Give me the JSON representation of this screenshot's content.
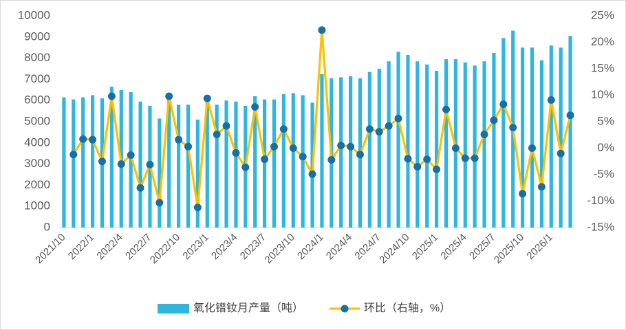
{
  "chart_data": {
    "type": "bar_line",
    "categories": [
      "2021/10",
      null,
      null,
      "2022/1",
      null,
      null,
      "2022/4",
      null,
      null,
      "2022/7",
      null,
      null,
      "2022/10",
      null,
      null,
      "2023/1",
      null,
      null,
      "2023/4",
      null,
      null,
      "2023/7",
      null,
      null,
      "2023/10",
      null,
      null,
      "2024/1",
      null,
      null,
      "2024/4",
      null,
      null,
      "2024/7",
      null,
      null,
      "2024/10",
      null,
      null,
      "2025/1",
      null,
      null,
      "2025/4",
      null,
      null,
      "2025/7",
      null,
      null,
      "2025/10",
      null,
      null,
      "2026/1",
      null,
      null
    ],
    "series": [
      {
        "name": "氧化镨钕月产量（吨）",
        "type": "bar",
        "color": "#2cb6e0",
        "values": [
          6150,
          6050,
          6150,
          6250,
          6100,
          6650,
          6500,
          6400,
          5950,
          5750,
          5150,
          6100,
          5800,
          5800,
          5100,
          6000,
          5800,
          6000,
          5950,
          5750,
          6200,
          6050,
          6050,
          6300,
          6350,
          6250,
          5900,
          7250,
          7050,
          7100,
          7150,
          7050,
          7350,
          7500,
          7850,
          8300,
          8150,
          7850,
          7700,
          7400,
          7950,
          7950,
          7800,
          7650,
          7850,
          8250,
          8950,
          9300,
          8500,
          8500,
          7900,
          8600,
          8500,
          9050
        ]
      },
      {
        "name": "环比（右轴，%）",
        "type": "line",
        "axis": "y2",
        "color": "#ffc000",
        "marker_color": "#1670a8",
        "values": [
          null,
          -1.2,
          1.7,
          1.6,
          -2.5,
          9.8,
          -3,
          -1.3,
          -7.5,
          -3.1,
          -10.3,
          9.8,
          1.6,
          0.3,
          -11.2,
          9.4,
          2.6,
          4.2,
          -0.9,
          -3.6,
          7.8,
          -2.1,
          0.3,
          3.6,
          0,
          -1.6,
          -4.9,
          22.3,
          -2.2,
          0.5,
          0.3,
          -1.2,
          3.6,
          3.1,
          4.2,
          5.6,
          -2,
          -3.5,
          -2.1,
          -4,
          7.3,
          0,
          -1.9,
          -1.9,
          2.6,
          5.3,
          8.3,
          3.9,
          -8.6,
          0,
          -7.3,
          9.1,
          -1,
          6.2
        ]
      }
    ],
    "ylim": [
      0,
      10000
    ],
    "yticks": [
      0,
      1000,
      2000,
      3000,
      4000,
      5000,
      6000,
      7000,
      8000,
      9000,
      10000
    ],
    "y2lim": [
      -15,
      25
    ],
    "y2ticks": [
      {
        "value": -15,
        "label": "-15%"
      },
      {
        "value": -10,
        "label": "-10%"
      },
      {
        "value": -5,
        "label": "-5%"
      },
      {
        "value": 0,
        "label": "0%"
      },
      {
        "value": 5,
        "label": "5%"
      },
      {
        "value": 10,
        "label": "10%"
      },
      {
        "value": 15,
        "label": "15%"
      },
      {
        "value": 20,
        "label": "20%"
      },
      {
        "value": 25,
        "label": "25%"
      }
    ],
    "legend": "bottom"
  }
}
